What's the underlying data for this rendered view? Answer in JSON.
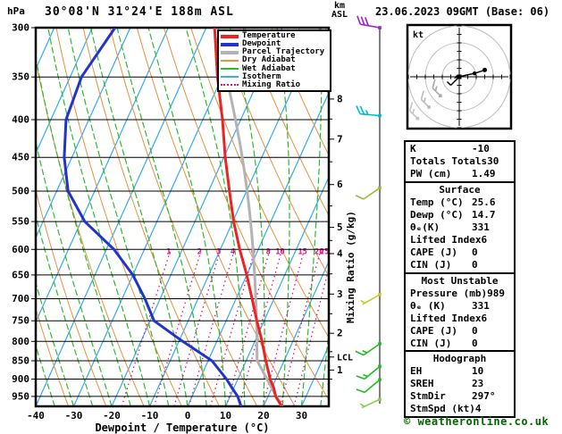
{
  "header": {
    "pressure_unit": "hPa",
    "title": "30°08'N 31°24'E 188m ASL",
    "altitude_unit": "km\nASL",
    "datetime": "23.06.2023 09GMT (Base: 06)"
  },
  "legend": {
    "items": [
      {
        "label": "Temperature",
        "color": "#ee2222",
        "thick": true,
        "dotted": false
      },
      {
        "label": "Dewpoint",
        "color": "#2233cc",
        "thick": true,
        "dotted": false
      },
      {
        "label": "Parcel Trajectory",
        "color": "#b3b3b3",
        "thick": true,
        "dotted": false
      },
      {
        "label": "Dry Adiabat",
        "color": "#e8913f",
        "thick": false,
        "dotted": false
      },
      {
        "label": "Wet Adiabat",
        "color": "#2ebb2e",
        "thick": false,
        "dotted": false
      },
      {
        "label": "Isotherm",
        "color": "#35aaee",
        "thick": false,
        "dotted": false
      },
      {
        "label": "Mixing Ratio",
        "color": "#dd1188",
        "thick": false,
        "dotted": true
      }
    ]
  },
  "axes": {
    "x_label": "Dewpoint / Temperature (°C)",
    "x_ticks": [
      -40,
      -30,
      -20,
      -10,
      0,
      10,
      20,
      30
    ],
    "pressure_ticks": [
      300,
      350,
      400,
      450,
      500,
      550,
      600,
      650,
      700,
      750,
      800,
      850,
      900,
      950
    ],
    "mixing_axis_label": "Mixing Ratio (g/kg)",
    "lcl_label": "LCL"
  },
  "chart_data": {
    "type": "line",
    "variant": "skew-t log-p sounding",
    "title": "30°08'N 31°24'E 188m ASL",
    "subtitle": "23.06.2023 09GMT (Base: 06)",
    "xlabel": "Dewpoint / Temperature (°C)",
    "ylabel": "hPa",
    "xlim_bottom_c": [
      -40,
      37
    ],
    "pressure_range_hpa": [
      300,
      980
    ],
    "grid": {
      "isotherms_c_step": 10,
      "dry_adiabats_c_step": 10,
      "wet_adiabats_c_step": 5,
      "mixing_ratio_lines_g_per_kg": [
        1,
        2,
        3,
        4,
        6,
        8,
        10,
        15,
        20,
        25
      ]
    },
    "series": [
      {
        "name": "Temperature",
        "color": "#ee2222",
        "pressure_hpa": [
          989,
          950,
          925,
          900,
          850,
          800,
          750,
          700,
          650,
          600,
          550,
          500,
          450,
          400,
          350,
          300
        ],
        "values_c": [
          25.6,
          22.0,
          20.5,
          18.5,
          15.2,
          11.9,
          8.1,
          4.2,
          0.0,
          -4.9,
          -9.8,
          -14.5,
          -19.6,
          -24.8,
          -31.2,
          -37.8
        ]
      },
      {
        "name": "Dewpoint",
        "color": "#2233cc",
        "pressure_hpa": [
          989,
          950,
          925,
          900,
          850,
          800,
          750,
          700,
          650,
          600,
          550,
          500,
          450,
          400,
          350,
          300
        ],
        "values_c": [
          14.7,
          12.0,
          9.5,
          7.0,
          1.0,
          -9.0,
          -19.0,
          -24.0,
          -30.0,
          -38.0,
          -49.0,
          -57.0,
          -62.0,
          -66.0,
          -67.0,
          -64.0
        ]
      },
      {
        "name": "Parcel Trajectory",
        "color": "#b3b3b3",
        "start_pressure_hpa": 989,
        "start_temp_c": 25.6,
        "start_dewp_c": 14.7,
        "lcl_pressure_hpa": 840
      }
    ],
    "km_asl_ticks": [
      {
        "km": 8,
        "pressure_hpa": 375
      },
      {
        "km": 7,
        "pressure_hpa": 425
      },
      {
        "km": 6,
        "pressure_hpa": 490
      },
      {
        "km": 5,
        "pressure_hpa": 560
      },
      {
        "km": 4,
        "pressure_hpa": 608
      },
      {
        "km": 3,
        "pressure_hpa": 690
      },
      {
        "km": 2,
        "pressure_hpa": 780
      },
      {
        "km": 1,
        "pressure_hpa": 875
      }
    ],
    "lcl_pressure_hpa": 840,
    "wind_barbs": [
      {
        "pressure_hpa": 300,
        "speed_kt": 30,
        "dir_deg": 280,
        "color": "#9922cc"
      },
      {
        "pressure_hpa": 395,
        "speed_kt": 25,
        "dir_deg": 275,
        "color": "#00bbcc"
      },
      {
        "pressure_hpa": 495,
        "speed_kt": 10,
        "dir_deg": 235,
        "color": "#99bb33"
      },
      {
        "pressure_hpa": 691,
        "speed_kt": 5,
        "dir_deg": 240,
        "color": "#cccc22"
      },
      {
        "pressure_hpa": 806,
        "speed_kt": 15,
        "dir_deg": 235,
        "color": "#22bb22"
      },
      {
        "pressure_hpa": 865,
        "speed_kt": 15,
        "dir_deg": 230,
        "color": "#22bb22"
      },
      {
        "pressure_hpa": 902,
        "speed_kt": 10,
        "dir_deg": 230,
        "color": "#22bb22"
      },
      {
        "pressure_hpa": 959,
        "speed_kt": 5,
        "dir_deg": 245,
        "color": "#88cc44"
      }
    ]
  },
  "hodograph": {
    "unit_label": "kt",
    "ring_radii_kt": [
      10,
      20,
      30
    ],
    "trace_kt": [
      [
        0,
        0
      ],
      [
        4,
        1
      ],
      [
        9,
        2
      ],
      [
        15,
        4
      ]
    ],
    "storm_vector_kt": [
      -5,
      -5
    ]
  },
  "panels": {
    "indices": {
      "rows": [
        [
          "K",
          "-10"
        ],
        [
          "Totals Totals",
          "30"
        ],
        [
          "PW (cm)",
          "1.49"
        ]
      ]
    },
    "surface": {
      "title": "Surface",
      "rows": [
        [
          "Temp (°C)",
          "25.6"
        ],
        [
          "Dewp (°C)",
          "14.7"
        ],
        [
          "θₑ(K)",
          "331"
        ],
        [
          "Lifted Index",
          "6"
        ],
        [
          "CAPE (J)",
          "0"
        ],
        [
          "CIN (J)",
          "0"
        ]
      ]
    },
    "most_unstable": {
      "title": "Most Unstable",
      "rows": [
        [
          "Pressure (mb)",
          "989"
        ],
        [
          "θₑ (K)",
          "331"
        ],
        [
          "Lifted Index",
          "6"
        ],
        [
          "CAPE (J)",
          "0"
        ],
        [
          "CIN (J)",
          "0"
        ]
      ]
    },
    "hodograph_stats": {
      "title": "Hodograph",
      "rows": [
        [
          "EH",
          "10"
        ],
        [
          "SREH",
          "23"
        ],
        [
          "StmDir",
          "297°"
        ],
        [
          "StmSpd (kt)",
          "4"
        ]
      ]
    }
  },
  "footer": {
    "credit": "© weatheronline.co.uk"
  }
}
